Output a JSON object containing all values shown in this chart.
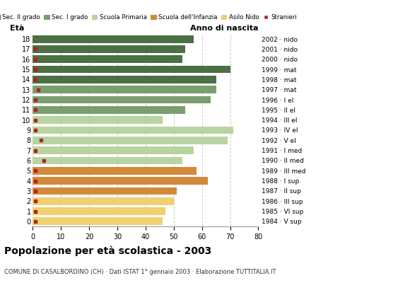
{
  "title": "Popolazione per età scolastica - 2003",
  "subtitle": "COMUNE DI CASALBORDINO (CH) · Dati ISTAT 1° gennaio 2003 · Elaborazione TUTTITALIA.IT",
  "xlabel_left": "Età",
  "xlabel_right": "Anno di nascita",
  "ages": [
    18,
    17,
    16,
    15,
    14,
    13,
    12,
    11,
    10,
    9,
    8,
    7,
    6,
    5,
    4,
    3,
    2,
    1,
    0
  ],
  "anno_nascita": [
    "1984 · V sup",
    "1985 · VI sup",
    "1986 · III sup",
    "1987 · II sup",
    "1988 · I sup",
    "1989 · III med",
    "1990 · II med",
    "1991 · I med",
    "1992 · V el",
    "1993 · IV el",
    "1994 · III el",
    "1995 · II el",
    "1996 · I el",
    "1997 · mat",
    "1998 · mat",
    "1999 · mat",
    "2000 · nido",
    "2001 · nido",
    "2002 · nido"
  ],
  "bar_values": [
    57,
    54,
    53,
    70,
    65,
    65,
    63,
    54,
    46,
    71,
    69,
    57,
    53,
    58,
    62,
    51,
    50,
    47,
    46
  ],
  "stranieri": [
    0,
    1,
    1,
    1,
    1,
    2,
    1,
    1,
    1,
    1,
    3,
    1,
    4,
    1,
    1,
    1,
    1,
    1,
    1
  ],
  "bar_colors": [
    "#4a7043",
    "#4a7043",
    "#4a7043",
    "#4a7043",
    "#4a7043",
    "#7a9e6e",
    "#7a9e6e",
    "#7a9e6e",
    "#b8d4a0",
    "#b8d4a0",
    "#b8d4a0",
    "#b8d4a0",
    "#b8d4a0",
    "#d4883a",
    "#d4883a",
    "#d4883a",
    "#f0d070",
    "#f0d070",
    "#f0d070"
  ],
  "legend_labels": [
    "Sec. II grado",
    "Sec. I grado",
    "Scuola Primaria",
    "Scuola dell'Infanzia",
    "Asilo Nido",
    "Stranieri"
  ],
  "legend_colors": [
    "#4a7043",
    "#7a9e6e",
    "#b8d4a0",
    "#d4883a",
    "#f0d070",
    "#b22222"
  ],
  "stranieri_color": "#b22222",
  "xlim": [
    0,
    80
  ],
  "xticks": [
    0,
    10,
    20,
    30,
    40,
    50,
    60,
    70,
    80
  ],
  "bg_color": "#ffffff",
  "grid_color": "#cccccc"
}
